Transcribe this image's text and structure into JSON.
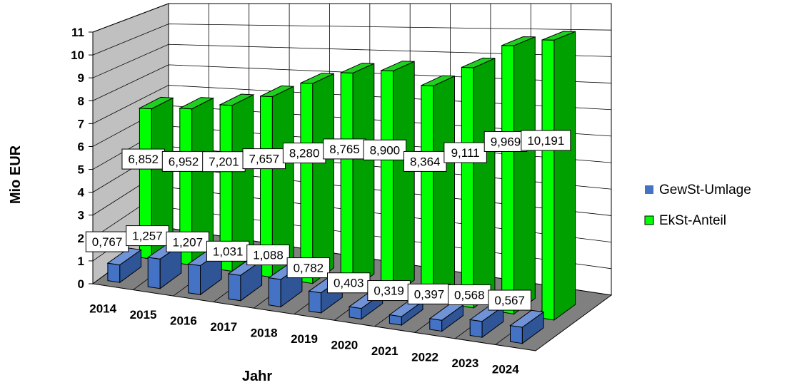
{
  "chart_data": {
    "type": "bar",
    "title": "",
    "xlabel": "Jahr",
    "ylabel": "Mio EUR",
    "ylim": [
      0,
      11
    ],
    "yticks": [
      "0",
      "1",
      "2",
      "3",
      "4",
      "5",
      "6",
      "7",
      "8",
      "9",
      "10",
      "11"
    ],
    "grid": true,
    "legend_position": "right",
    "categories": [
      "2014",
      "2015",
      "2016",
      "2017",
      "2018",
      "2019",
      "2020",
      "2021",
      "2022",
      "2023",
      "2024"
    ],
    "series": [
      {
        "name": "GewSt-Umlage",
        "color": "#4472c4",
        "values": [
          0.767,
          1.257,
          1.207,
          1.031,
          1.088,
          0.782,
          0.403,
          0.319,
          0.397,
          0.568,
          0.567
        ],
        "labels": [
          "0,767",
          "1,257",
          "1,207",
          "1,031",
          "1,088",
          "0,782",
          "0,403",
          "0,319",
          "0,397",
          "0,568",
          "0,567"
        ]
      },
      {
        "name": "EkSt-Anteil",
        "color": "#00ff00",
        "values": [
          6.852,
          6.952,
          7.201,
          7.657,
          8.28,
          8.765,
          8.9,
          8.364,
          9.111,
          9.969,
          10.191
        ],
        "labels": [
          "6,852",
          "6,952",
          "7,201",
          "7,657",
          "8,280",
          "8,765",
          "8,900",
          "8,364",
          "9,111",
          "9,969",
          "10,191"
        ]
      }
    ]
  }
}
